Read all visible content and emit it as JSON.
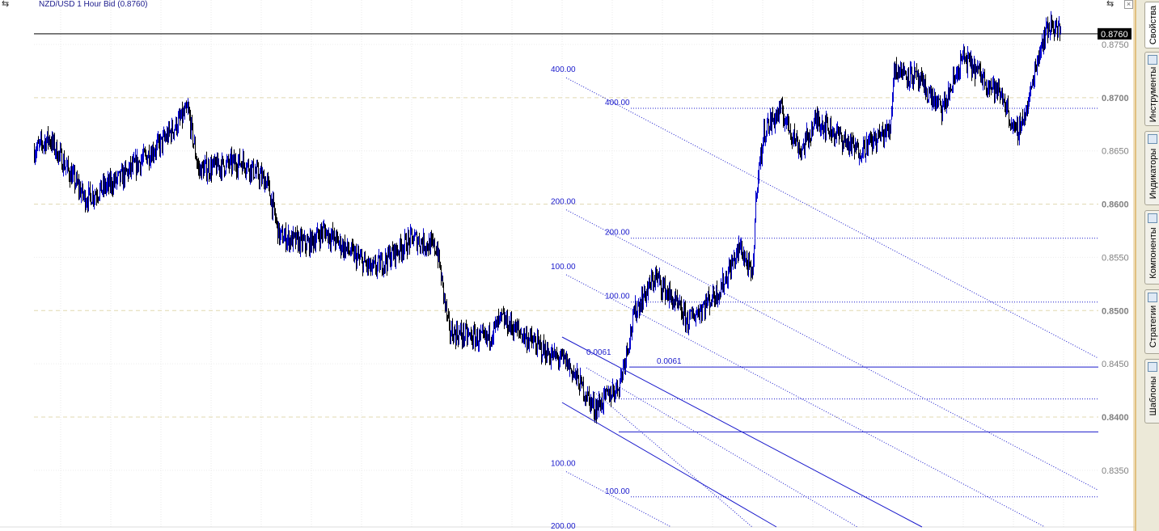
{
  "chart_title": "NZD/USD 1 Hour Bid (0.8760)",
  "current_price_label": "0.8760",
  "sidebar_tabs": [
    {
      "label": "Свойства",
      "icon": "properties-icon",
      "active": true
    },
    {
      "label": "Инструменты",
      "icon": "instruments-icon"
    },
    {
      "label": "Индикаторы",
      "icon": "indicators-icon"
    },
    {
      "label": "Компоненты",
      "icon": "components-icon"
    },
    {
      "label": "Стратегии",
      "icon": "strategies-icon"
    },
    {
      "label": "Шаблоны",
      "icon": "templates-icon"
    }
  ],
  "colors": {
    "up": "#0000cc",
    "down": "#000000",
    "drawing": "#1a1acc",
    "grid": "#e0dcc0",
    "axis_text": "#808080"
  },
  "chart_data": {
    "type": "line",
    "title": "NZD/USD 1 Hour Bid (0.8760)",
    "ylim": [
      0.831,
      0.8783
    ],
    "y_ticks": [
      "0.8750",
      "0.8700",
      "0.8650",
      "0.8600",
      "0.8550",
      "0.8500",
      "0.8450",
      "0.8400",
      "0.8350"
    ],
    "current_price": 0.876,
    "price_path": [
      [
        0,
        0.865
      ],
      [
        18,
        0.8662
      ],
      [
        63,
        0.8605
      ],
      [
        108,
        0.8625
      ],
      [
        158,
        0.8658
      ],
      [
        190,
        0.8688
      ],
      [
        203,
        0.8632
      ],
      [
        258,
        0.864
      ],
      [
        288,
        0.862
      ],
      [
        303,
        0.857
      ],
      [
        338,
        0.8562
      ],
      [
        358,
        0.8575
      ],
      [
        418,
        0.8538
      ],
      [
        468,
        0.8568
      ],
      [
        498,
        0.8558
      ],
      [
        513,
        0.848
      ],
      [
        558,
        0.8472
      ],
      [
        578,
        0.8492
      ],
      [
        638,
        0.8458
      ],
      [
        658,
        0.8452
      ],
      [
        693,
        0.8408
      ],
      [
        723,
        0.843
      ],
      [
        743,
        0.85
      ],
      [
        768,
        0.8532
      ],
      [
        808,
        0.849
      ],
      [
        848,
        0.852
      ],
      [
        873,
        0.856
      ],
      [
        888,
        0.853
      ],
      [
        893,
        0.8618
      ],
      [
        903,
        0.867
      ],
      [
        923,
        0.8688
      ],
      [
        948,
        0.865
      ],
      [
        968,
        0.868
      ],
      [
        1018,
        0.865
      ],
      [
        1058,
        0.867
      ],
      [
        1063,
        0.8728
      ],
      [
        1088,
        0.872
      ],
      [
        1123,
        0.8688
      ],
      [
        1148,
        0.8738
      ],
      [
        1198,
        0.87
      ],
      [
        1213,
        0.8665
      ],
      [
        1228,
        0.869
      ],
      [
        1238,
        0.873
      ],
      [
        1248,
        0.8758
      ],
      [
        1258,
        0.877
      ],
      [
        1270,
        0.876
      ]
    ],
    "drawings": {
      "fan_labels": [
        {
          "text": "400.00",
          "price": 0.8724
        },
        {
          "text": "200.00",
          "price": 0.86
        },
        {
          "text": "100.00",
          "price": 0.8539
        },
        {
          "text": "100.00",
          "price": 0.8354
        },
        {
          "text": "200.00",
          "price": 0.8294
        }
      ],
      "levels": [
        {
          "text": "400.00",
          "price": 0.869,
          "style": "dotted"
        },
        {
          "text": "200.00",
          "price": 0.8568,
          "style": "dotted"
        },
        {
          "text": "100.00",
          "price": 0.8508,
          "style": "dotted"
        },
        {
          "text": "0.0061",
          "price": 0.8447,
          "style": "solid"
        },
        {
          "text": "",
          "price": 0.8417,
          "style": "dotted"
        },
        {
          "text": "",
          "price": 0.8386,
          "style": "solid"
        },
        {
          "text": "100.00",
          "price": 0.8325,
          "style": "dotted"
        }
      ],
      "channel_label": "0.0061"
    }
  }
}
